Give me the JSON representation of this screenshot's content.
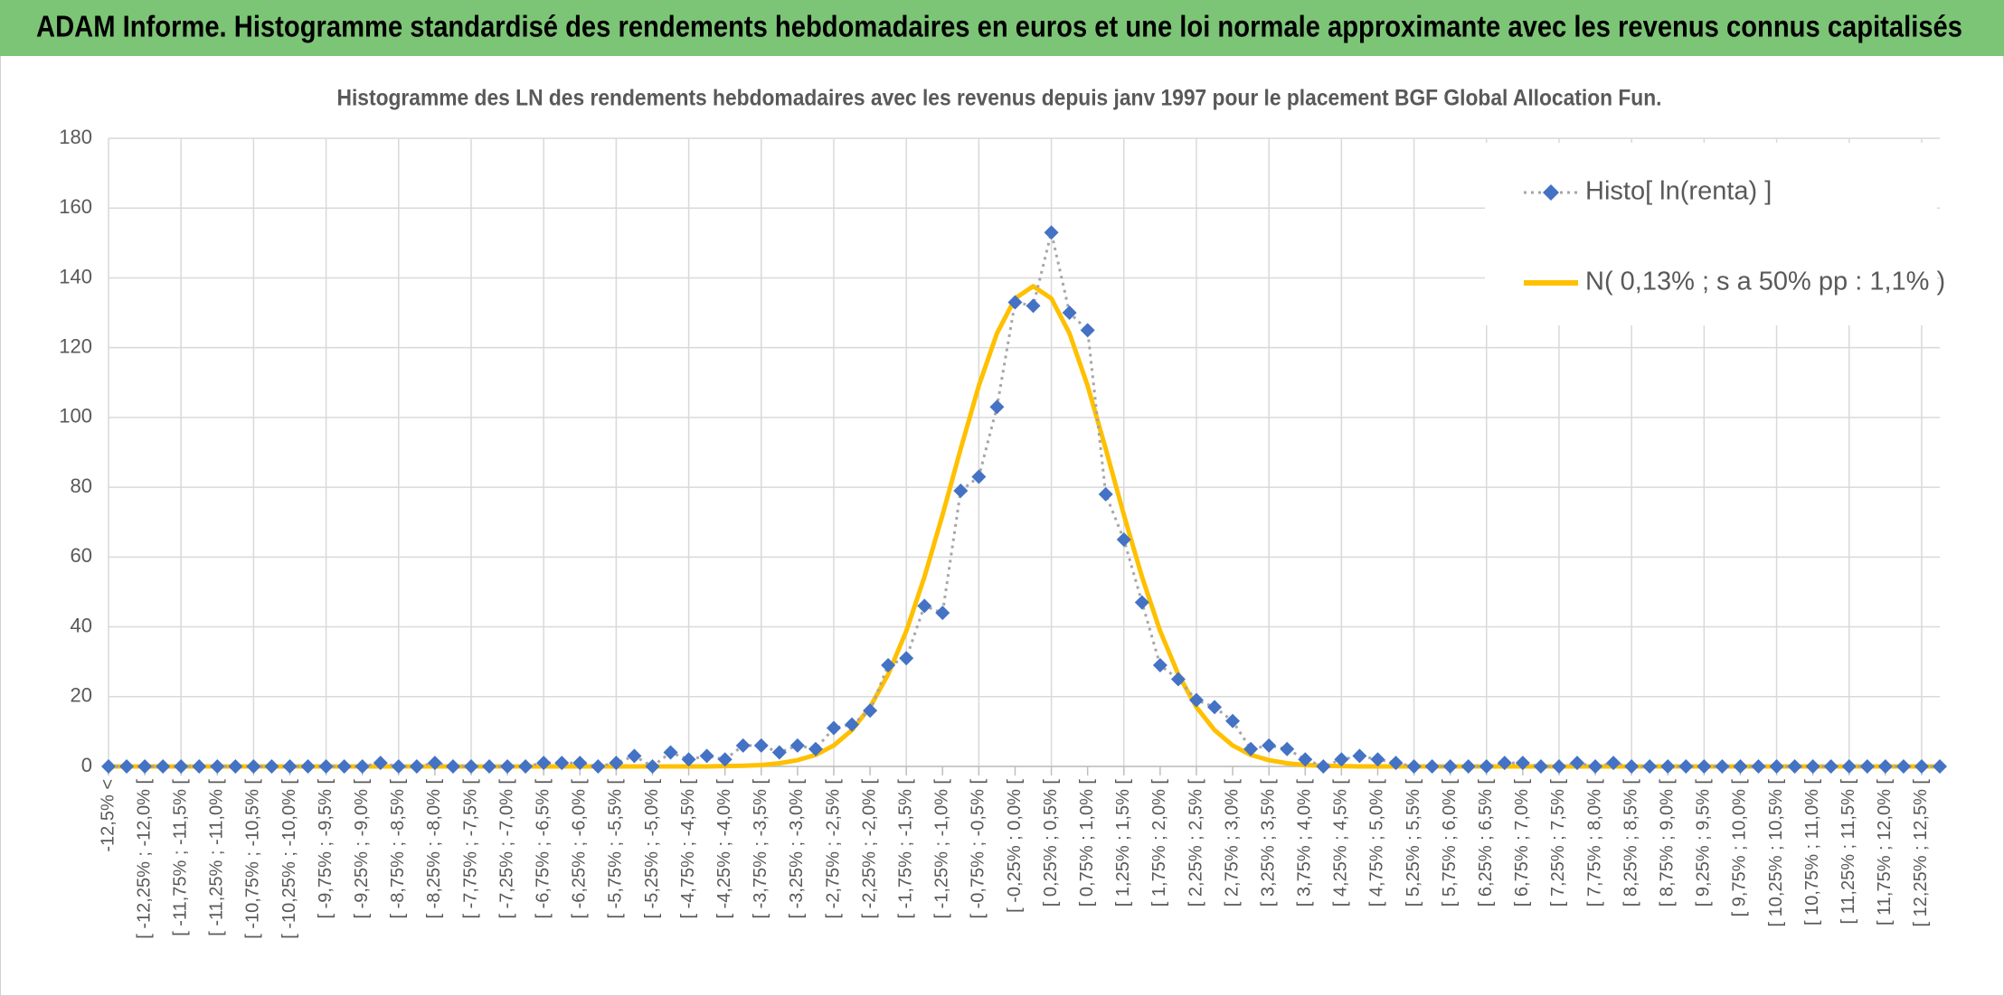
{
  "chart_data": {
    "type": "line",
    "header": "ADAM Informe. Histogramme standardisé des rendements hebdomadaires en euros et une loi normale approximante avec les revenus connus capitalisés",
    "title": "Histogramme des LN des rendements hebdomadaires avec les revenus depuis janv 1997 pour le placement BGF Global Allocation Fun.",
    "categories": [
      "-12,5% <",
      null,
      "[ -12,25% ; -12,0% [",
      null,
      "[ -11,75% ; -11,5% [",
      null,
      "[ -11,25% ; -11,0% [",
      null,
      "[ -10,75% ; -10,5% [",
      null,
      "[ -10,25% ; -10,0% [",
      null,
      "[ -9,75% ; -9,5% [",
      null,
      "[ -9,25% ; -9,0% [",
      null,
      "[ -8,75% ; -8,5% [",
      null,
      "[ -8,25% ; -8,0% [",
      null,
      "[ -7,75% ; -7,5% [",
      null,
      "[ -7,25% ; -7,0% [",
      null,
      "[ -6,75% ; -6,5% [",
      null,
      "[ -6,25% ; -6,0% [",
      null,
      "[ -5,75% ; -5,5% [",
      null,
      "[ -5,25% ; -5,0% [",
      null,
      "[ -4,75% ; -4,5% [",
      null,
      "[ -4,25% ; -4,0% [",
      null,
      "[ -3,75% ; -3,5% [",
      null,
      "[ -3,25% ; -3,0% [",
      null,
      "[ -2,75% ; -2,5% [",
      null,
      "[ -2,25% ; -2,0% [",
      null,
      "[ -1,75% ; -1,5% [",
      null,
      "[ -1,25% ; -1,0% [",
      null,
      "[ -0,75% ; -0,5% [",
      null,
      "[ -0,25% ; 0,0% [",
      null,
      "[ 0,25% ; 0,5% [",
      null,
      "[ 0,75% ; 1,0% [",
      null,
      "[ 1,25% ; 1,5% [",
      null,
      "[ 1,75% ; 2,0% [",
      null,
      "[ 2,25% ; 2,5% [",
      null,
      "[ 2,75% ; 3,0% [",
      null,
      "[ 3,25% ; 3,5% [",
      null,
      "[ 3,75% ; 4,0% [",
      null,
      "[ 4,25% ; 4,5% [",
      null,
      "[ 4,75% ; 5,0% [",
      null,
      "[ 5,25% ; 5,5% [",
      null,
      "[ 5,75% ; 6,0% [",
      null,
      "[ 6,25% ; 6,5% [",
      null,
      "[ 6,75% ; 7,0% [",
      null,
      "[ 7,25% ; 7,5% [",
      null,
      "[ 7,75% ; 8,0% [",
      null,
      "[ 8,25% ; 8,5% [",
      null,
      "[ 8,75% ; 9,0% [",
      null,
      "[ 9,25% ; 9,5% [",
      null,
      "[ 9,75% ; 10,0% [",
      null,
      "[ 10,25% ; 10,5% [",
      null,
      "[ 10,75% ; 11,0% [",
      null,
      "[ 11,25% ; 11,5% [",
      null,
      "[ 11,75% ; 12,0% [",
      null,
      "[ 12,25% ; 12,5% [",
      null
    ],
    "series": [
      {
        "name": "Histo[ ln(renta) ]",
        "color": "#4472c4",
        "line_color": "#a6a6a6",
        "line_style": "dotted",
        "marker": "diamond",
        "values": [
          0,
          0,
          0,
          0,
          0,
          0,
          0,
          0,
          0,
          0,
          0,
          0,
          0,
          0,
          0,
          1,
          0,
          0,
          1,
          0,
          0,
          0,
          0,
          0,
          1,
          1,
          1,
          0,
          1,
          3,
          0,
          4,
          2,
          3,
          2,
          6,
          6,
          4,
          6,
          5,
          11,
          12,
          16,
          29,
          31,
          46,
          44,
          79,
          83,
          103,
          133,
          132,
          153,
          130,
          125,
          78,
          65,
          47,
          29,
          25,
          19,
          17,
          13,
          5,
          6,
          5,
          2,
          0,
          2,
          3,
          2,
          1,
          0,
          0,
          0,
          0,
          0,
          1,
          1,
          0,
          0,
          1,
          0,
          1,
          0,
          0,
          0,
          0,
          0,
          0,
          0,
          0,
          0,
          0,
          0,
          0,
          0,
          0,
          0,
          0,
          0,
          0
        ]
      },
      {
        "name": "N( 0,13% ; s a 50% pp : 1,1% )",
        "color": "#ffc000",
        "line_style": "solid",
        "marker": "none",
        "values": [
          0,
          0,
          0,
          0,
          0,
          0,
          0,
          0,
          0,
          0,
          0,
          0,
          0,
          0,
          0,
          0,
          0,
          0,
          0,
          0,
          0,
          0,
          0,
          0,
          0,
          0,
          0,
          0,
          0,
          0,
          0,
          0,
          0,
          0,
          0.1,
          0.2,
          0.4,
          0.9,
          1.8,
          3.3,
          6.0,
          10.4,
          17.0,
          26.4,
          38.8,
          54.3,
          72.1,
          91.0,
          109.1,
          124.1,
          134.1,
          137.6,
          134.1,
          124.1,
          109.1,
          91.0,
          72.1,
          54.3,
          38.8,
          26.4,
          17.0,
          10.4,
          6.0,
          3.3,
          1.8,
          0.9,
          0.4,
          0.2,
          0.1,
          0,
          0,
          0,
          0,
          0,
          0,
          0,
          0,
          0,
          0,
          0,
          0,
          0,
          0,
          0,
          0,
          0,
          0,
          0,
          0,
          0,
          0,
          0,
          0,
          0,
          0,
          0,
          0,
          0,
          0,
          0,
          0,
          0
        ]
      }
    ],
    "ylim": [
      0,
      180
    ],
    "yticks": [
      0,
      20,
      40,
      60,
      80,
      100,
      120,
      140,
      160,
      180
    ],
    "grid": true,
    "legend": "top-right"
  }
}
